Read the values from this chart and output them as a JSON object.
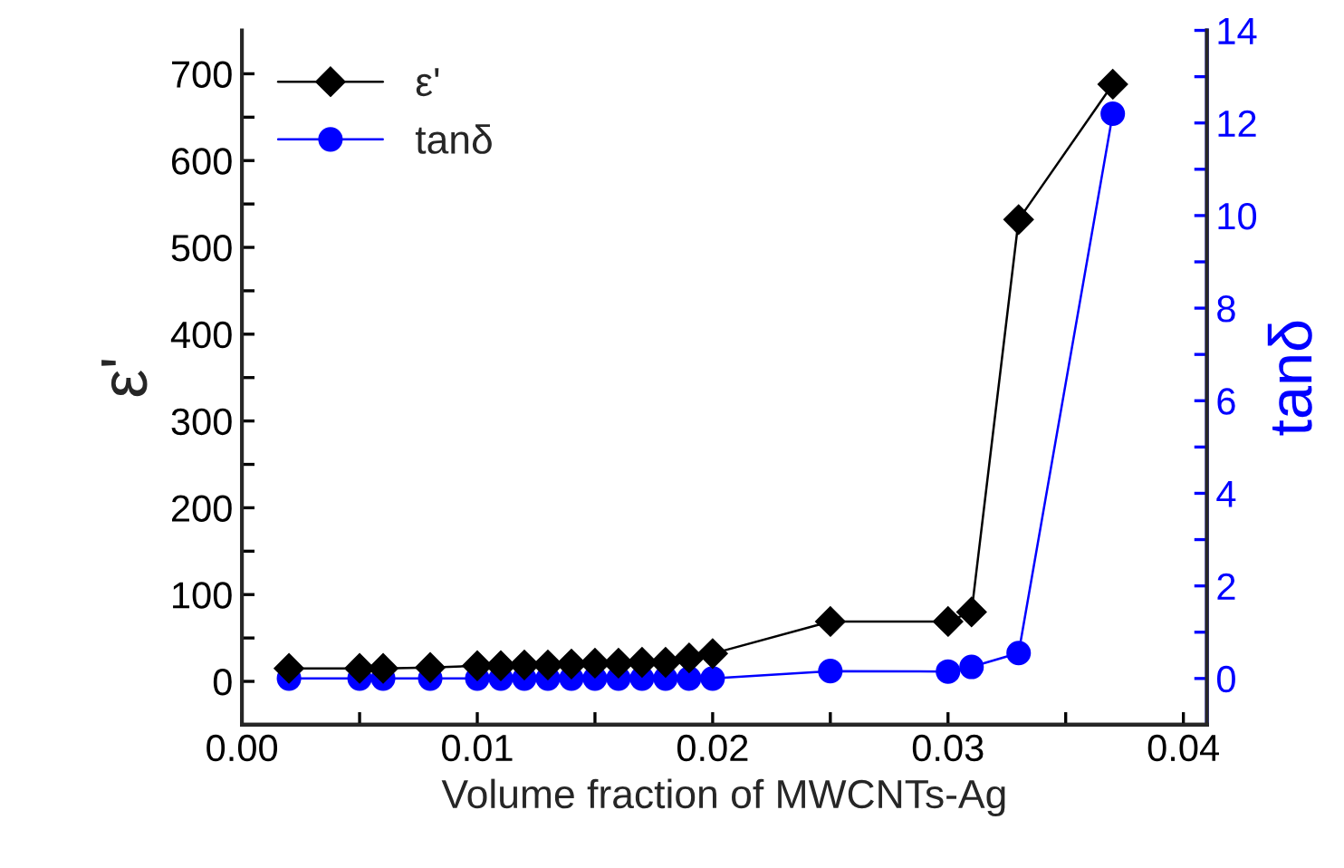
{
  "chart_data": {
    "type": "line",
    "xlabel": "Volume fraction of MWCNTs-Ag",
    "ylabel": "ε'",
    "y2label": "tanδ",
    "x": [
      0.002,
      0.005,
      0.006,
      0.008,
      0.01,
      0.011,
      0.012,
      0.013,
      0.014,
      0.015,
      0.016,
      0.017,
      0.018,
      0.019,
      0.02,
      0.025,
      0.03,
      0.031,
      0.033,
      0.037
    ],
    "series": [
      {
        "name": "ε'",
        "color": "#000000",
        "marker": "diamond",
        "values": [
          15,
          15,
          15,
          16,
          18,
          18,
          19,
          19,
          20,
          21,
          21,
          22,
          22,
          27,
          32,
          69,
          69,
          80,
          532,
          688
        ]
      },
      {
        "name": "tanδ",
        "color": "#0000ff",
        "marker": "circle",
        "axis": "y2",
        "values": [
          0,
          0,
          0,
          0,
          0,
          0,
          0,
          0,
          0,
          0,
          0,
          0,
          0,
          0,
          0,
          0.16,
          0.15,
          0.25,
          0.55,
          12.2
        ]
      }
    ],
    "xlim": [
      0,
      0.041
    ],
    "xticks": [
      {
        "value": 0,
        "label": "0.00"
      },
      {
        "value": 0.005,
        "label": null
      },
      {
        "value": 0.01,
        "label": "0.01"
      },
      {
        "value": 0.015,
        "label": null
      },
      {
        "value": 0.02,
        "label": "0.02"
      },
      {
        "value": 0.025,
        "label": null
      },
      {
        "value": 0.03,
        "label": "0.03"
      },
      {
        "value": 0.035,
        "label": null
      },
      {
        "value": 0.04,
        "label": "0.04"
      }
    ],
    "ylim": [
      -50,
      750
    ],
    "yticks": [
      0,
      {
        "value": 50,
        "label": null
      },
      100,
      {
        "value": 150,
        "label": null
      },
      200,
      {
        "value": 250,
        "label": null
      },
      300,
      {
        "value": 350,
        "label": null
      },
      400,
      {
        "value": 450,
        "label": null
      },
      500,
      {
        "value": 550,
        "label": null
      },
      600,
      {
        "value": 650,
        "label": null
      },
      700
    ],
    "y2lim": [
      -1,
      14
    ],
    "y2ticks": [
      0,
      {
        "value": 1,
        "label": null
      },
      2,
      {
        "value": 3,
        "label": null
      },
      4,
      {
        "value": 5,
        "label": null
      },
      6,
      {
        "value": 7,
        "label": null
      },
      8,
      {
        "value": 9,
        "label": null
      },
      10,
      {
        "value": 11,
        "label": null
      },
      12,
      {
        "value": 13,
        "label": null
      },
      14
    ],
    "legend": "top left",
    "grid": false,
    "line_style": "solid"
  }
}
